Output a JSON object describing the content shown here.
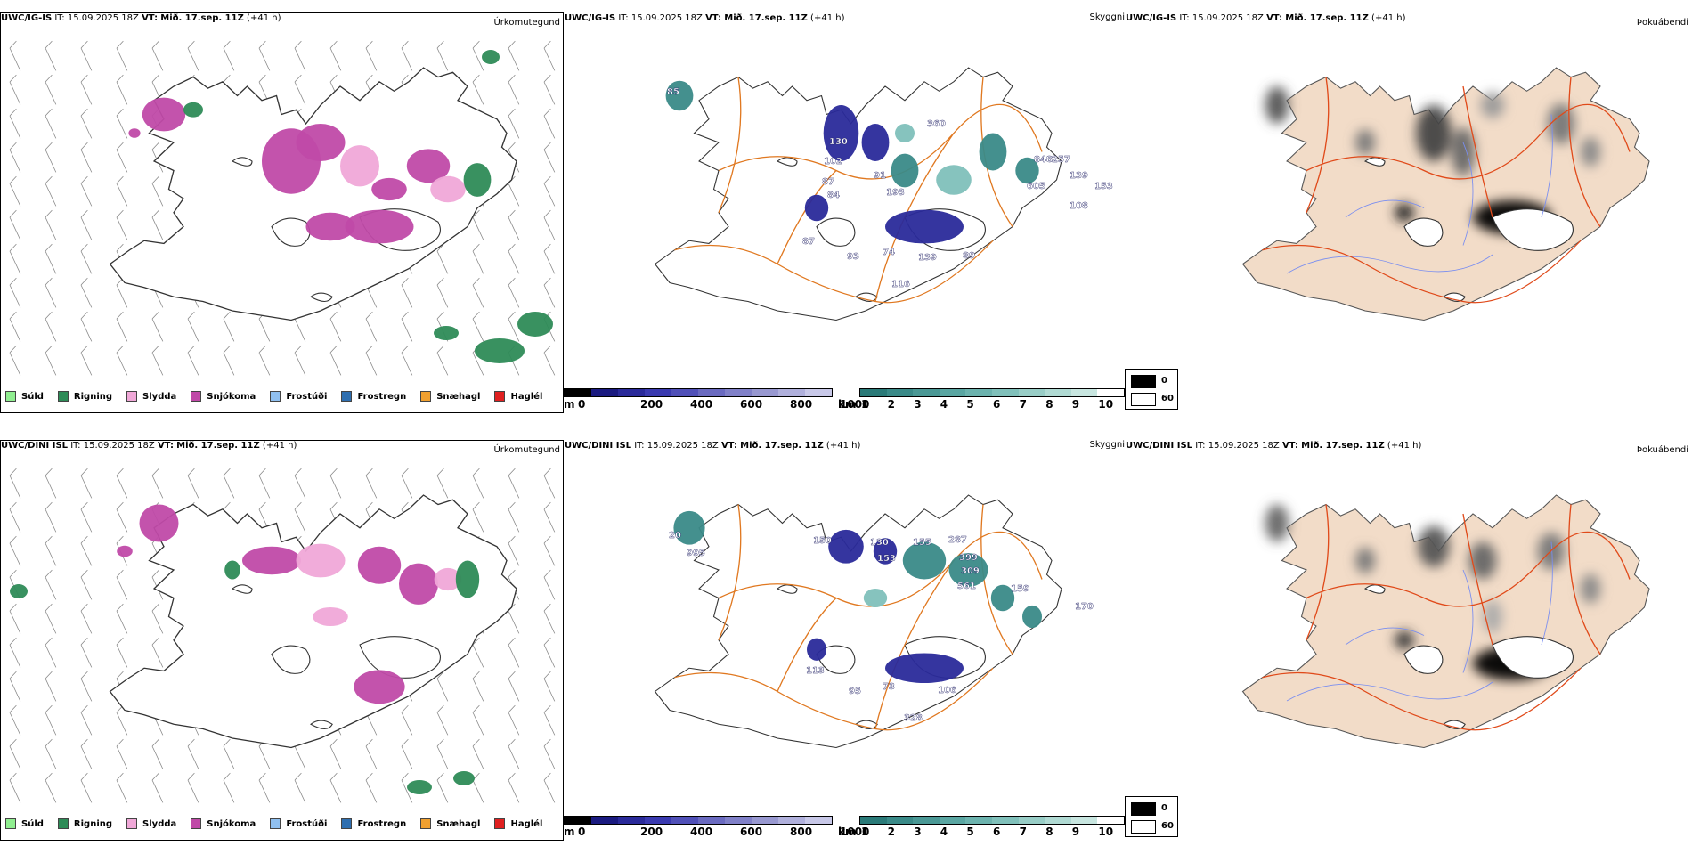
{
  "rows": [
    {
      "model": "UWC/IG-IS",
      "it_label": "IT:",
      "it_value": "15.09.2025 18Z",
      "vt_label": "VT:",
      "vt_value": "Mið. 17.sep. 11Z",
      "lead": "(+41 h)",
      "precip_cloud_labels": [
        "85",
        "130",
        "102",
        "87",
        "84",
        "91",
        "193",
        "139",
        "605",
        "848",
        "257",
        "108",
        "153",
        "87",
        "93",
        "74",
        "139",
        "89",
        "116",
        "360"
      ],
      "precip_cloud_label_data_note": "cloud base labels in m as printed on map"
    },
    {
      "model": "UWC/DINI ISL",
      "it_label": "IT:",
      "it_value": "15.09.2025 18Z",
      "vt_label": "VT:",
      "vt_value": "Mið. 17.sep. 11Z",
      "lead": "(+41 h)",
      "precip_cloud_labels": [
        "20",
        "995",
        "150",
        "130",
        "153",
        "155",
        "287",
        "399",
        "309",
        "561",
        "159",
        "113",
        "95",
        "73",
        "106",
        "328",
        "170"
      ],
      "precip_cloud_label_data_note": "cloud base labels in m as printed on map"
    }
  ],
  "panel_titles": {
    "precip": "Úrkomutegund",
    "clouds": "Skyggni",
    "fog": "Þokuábendi"
  },
  "precip_legend": [
    {
      "label": "Súld",
      "color": "#90ee90"
    },
    {
      "label": "Rigning",
      "color": "#2e8b57"
    },
    {
      "label": "Slydda",
      "color": "#f0a8d8"
    },
    {
      "label": "Snjókoma",
      "color": "#c04aa8"
    },
    {
      "label": "Frostúði",
      "color": "#90c0f0"
    },
    {
      "label": "Frostregn",
      "color": "#2f6fb0"
    },
    {
      "label": "Snæhagl",
      "color": "#f0a030"
    },
    {
      "label": "Haglél",
      "color": "#e02020"
    }
  ],
  "cloud_base_scale": {
    "unit": "m",
    "ticks": [
      "0",
      "200",
      "400",
      "600",
      "800",
      "1000"
    ],
    "colors": [
      "#000000",
      "#1a1a80",
      "#2a2a9a",
      "#3a3ab0",
      "#5050b8",
      "#6a6ac0",
      "#8080c8",
      "#9898d0",
      "#b0b0dc",
      "#c8c8e8"
    ]
  },
  "visibility_scale": {
    "unit": "km",
    "ticks": [
      "1",
      "2",
      "3",
      "4",
      "5",
      "6",
      "7",
      "8",
      "9",
      "10"
    ],
    "colors": [
      "#2a7a78",
      "#3a8a88",
      "#4a9895",
      "#5aa6a2",
      "#6cb3ae",
      "#80c0ba",
      "#98cdc6",
      "#b0dad3",
      "#c8e6e0",
      "#ffffff"
    ]
  },
  "fog_key": [
    {
      "label": "0",
      "color": "#000000"
    },
    {
      "label": "60",
      "color": "#ffffff"
    }
  ]
}
